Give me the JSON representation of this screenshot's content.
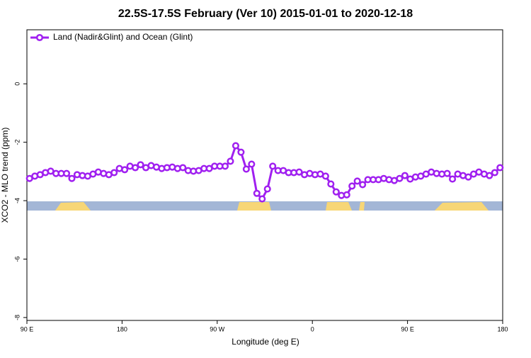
{
  "chart_data": {
    "type": "line",
    "title": "22.5S-17.5S February (Ver 10)   2015-01-01 to 2020-12-18",
    "x_label": "Longitude (deg E)",
    "y_label": "XCO2 - MLO trend (ppm)",
    "legend": "top-left",
    "xlim": [
      90,
      540
    ],
    "ylim": [
      -8.1,
      1.85
    ],
    "xticks": [
      {
        "value": 90,
        "label": "90 E"
      },
      180,
      {
        "value": 270,
        "label": "90 W"
      },
      {
        "value": 360,
        "label": "0"
      },
      {
        "value": 450,
        "label": "90 E"
      },
      {
        "value": 540,
        "label": "180"
      }
    ],
    "yticks": [
      0,
      -2,
      -4,
      -6,
      -8
    ],
    "x": [
      92.5,
      97.5,
      102.5,
      107.5,
      112.5,
      117.5,
      122.5,
      127.5,
      132.5,
      137.5,
      142.5,
      147.5,
      152.5,
      157.5,
      162.5,
      167.5,
      172.5,
      177.5,
      182.5,
      187.5,
      192.5,
      197.5,
      202.5,
      207.5,
      212.5,
      217.5,
      222.5,
      227.5,
      232.5,
      237.5,
      242.5,
      247.5,
      252.5,
      257.5,
      262.5,
      267.5,
      272.5,
      277.5,
      282.5,
      287.5,
      292.5,
      297.5,
      302.5,
      307.5,
      312.5,
      317.5,
      322.5,
      327.5,
      332.5,
      337.5,
      342.5,
      347.5,
      352.5,
      357.5,
      362.5,
      367.5,
      372.5,
      377.5,
      382.5,
      387.5,
      392.5,
      397.5,
      402.5,
      407.5,
      412.5,
      417.5,
      422.5,
      427.5,
      432.5,
      437.5,
      442.5,
      447.5,
      452.5,
      457.5,
      462.5,
      467.5,
      472.5,
      477.5,
      482.5,
      487.5,
      492.5,
      497.5,
      502.5,
      507.5,
      512.5,
      517.5,
      522.5,
      527.5,
      532.5,
      537.5
    ],
    "series": [
      {
        "name": "Land (Nadir&Glint) and Ocean (Glint)",
        "color": "#a020f0",
        "values": [
          -3.24,
          -3.16,
          -3.11,
          -3.04,
          -2.99,
          -3.07,
          -3.07,
          -3.07,
          -3.24,
          -3.11,
          -3.14,
          -3.16,
          -3.09,
          -3.02,
          -3.07,
          -3.11,
          -3.04,
          -2.9,
          -2.94,
          -2.82,
          -2.87,
          -2.77,
          -2.87,
          -2.8,
          -2.85,
          -2.9,
          -2.87,
          -2.85,
          -2.9,
          -2.87,
          -2.97,
          -2.99,
          -2.97,
          -2.9,
          -2.9,
          -2.82,
          -2.82,
          -2.82,
          -2.65,
          -2.12,
          -2.34,
          -2.92,
          -2.75,
          -3.75,
          -3.94,
          -3.6,
          -2.82,
          -2.97,
          -2.97,
          -3.04,
          -3.04,
          -3.02,
          -3.11,
          -3.07,
          -3.11,
          -3.09,
          -3.16,
          -3.43,
          -3.7,
          -3.82,
          -3.8,
          -3.5,
          -3.33,
          -3.45,
          -3.28,
          -3.28,
          -3.28,
          -3.24,
          -3.28,
          -3.31,
          -3.24,
          -3.14,
          -3.26,
          -3.19,
          -3.16,
          -3.09,
          -3.02,
          -3.07,
          -3.09,
          -3.07,
          -3.26,
          -3.09,
          -3.14,
          -3.19,
          -3.09,
          -3.02,
          -3.09,
          -3.14,
          -3.04,
          -2.87
        ]
      }
    ]
  }
}
